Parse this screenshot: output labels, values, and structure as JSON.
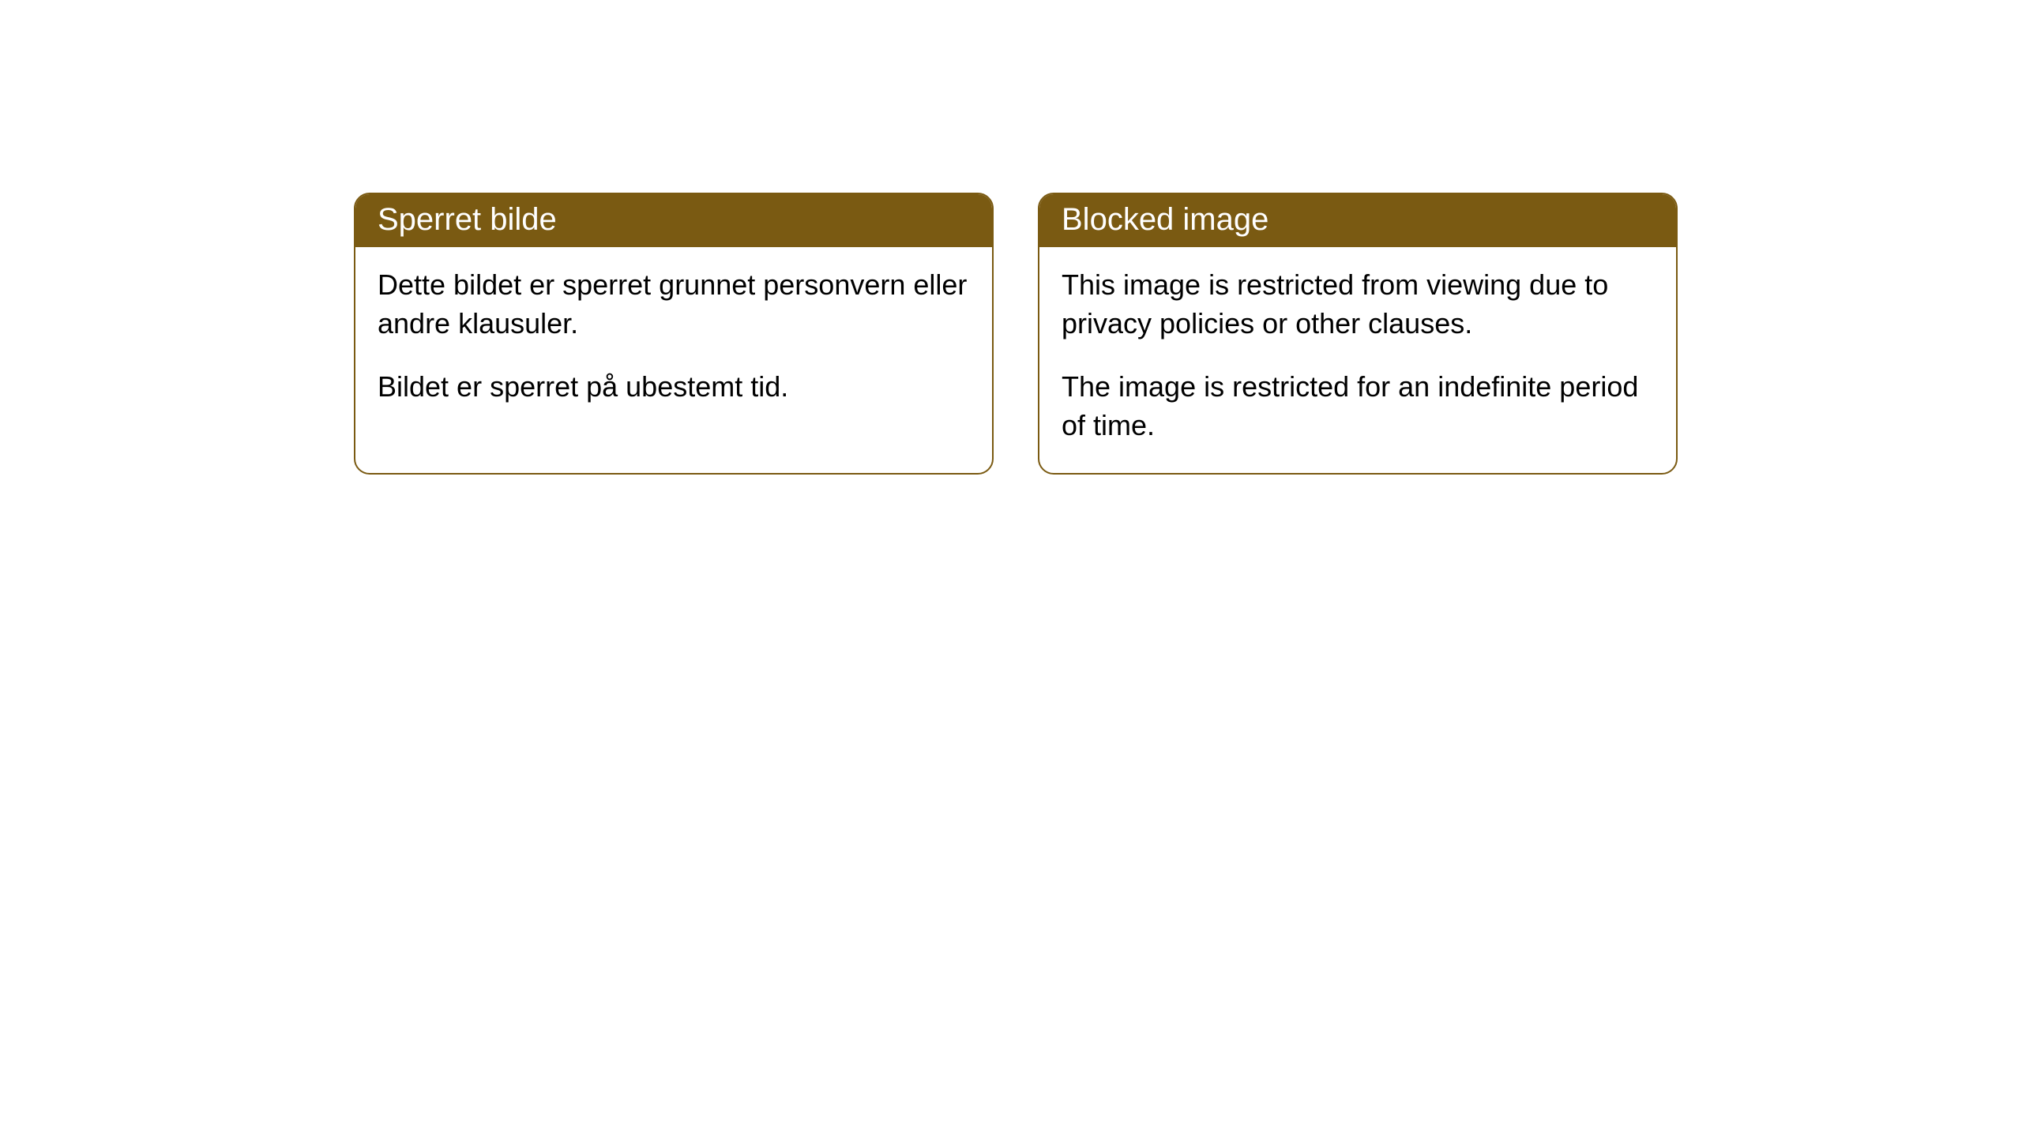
{
  "cards": [
    {
      "title": "Sperret bilde",
      "paragraph1": "Dette bildet er sperret grunnet personvern eller andre klausuler.",
      "paragraph2": "Bildet er sperret på ubestemt tid."
    },
    {
      "title": "Blocked image",
      "paragraph1": "This image is restricted from viewing due to privacy policies or other clauses.",
      "paragraph2": "The image is restricted for an indefinite period of time."
    }
  ],
  "styling": {
    "header_bg_color": "#7a5a12",
    "header_text_color": "#ffffff",
    "body_text_color": "#000000",
    "border_color": "#7a5a12",
    "background_color": "#ffffff",
    "border_radius": 20,
    "title_fontsize": 40,
    "body_fontsize": 36
  }
}
